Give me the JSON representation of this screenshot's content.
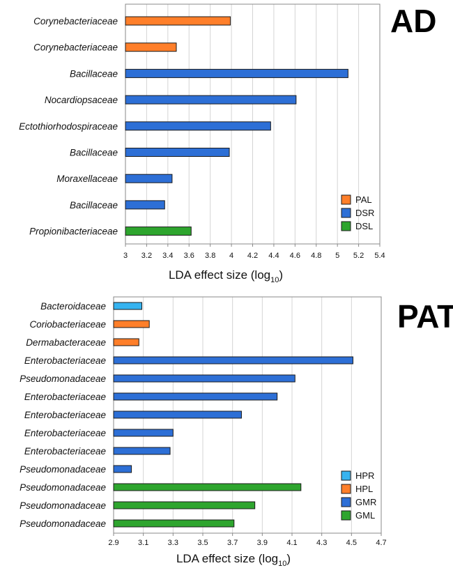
{
  "chart_data": [
    {
      "type": "bar",
      "orientation": "horizontal",
      "panel_label": "AD",
      "xlabel": "LDA effect size (log",
      "xlabel_sub": "10",
      "xlabel_close": ")",
      "xlim": [
        3,
        5.4
      ],
      "xticks": [
        "3",
        "3.2",
        "3.4",
        "3.6",
        "3.8",
        "4",
        "4.2",
        "4.4",
        "4.6",
        "4.8",
        "5",
        "5.2",
        "5.4"
      ],
      "grid": "vertical",
      "legend_position": "bottom-right",
      "legend": [
        {
          "name": "PAL",
          "color": "#ff7f2a"
        },
        {
          "name": "DSR",
          "color": "#2d6fd6"
        },
        {
          "name": "DSL",
          "color": "#2ea52e"
        }
      ],
      "categories": [
        "Corynebacteriaceae",
        "Corynebacteriaceae",
        "Bacillaceae",
        "Nocardiopsaceae",
        "Ectothiorhodospiraceae",
        "Bacillaceae",
        "Moraxellaceae",
        "Bacillaceae",
        "Propionibacteriaceae"
      ],
      "values": [
        3.99,
        3.48,
        5.1,
        4.61,
        4.37,
        3.98,
        3.44,
        3.37,
        3.62
      ],
      "groups": [
        "PAL",
        "PAL",
        "DSR",
        "DSR",
        "DSR",
        "DSR",
        "DSR",
        "DSR",
        "DSL"
      ]
    },
    {
      "type": "bar",
      "orientation": "horizontal",
      "panel_label": "PAT",
      "xlabel": "LDA effect size (log",
      "xlabel_sub": "10",
      "xlabel_close": ")",
      "xlim": [
        2.9,
        4.7
      ],
      "xticks": [
        "2.9",
        "3.1",
        "3.3",
        "3.5",
        "3.7",
        "3.9",
        "4.1",
        "4.3",
        "4.5",
        "4.7"
      ],
      "grid": "vertical",
      "legend_position": "bottom-right",
      "legend": [
        {
          "name": "HPR",
          "color": "#36b3f0"
        },
        {
          "name": "HPL",
          "color": "#ff7f2a"
        },
        {
          "name": "GMR",
          "color": "#2d6fd6"
        },
        {
          "name": "GML",
          "color": "#2ea52e"
        }
      ],
      "categories": [
        "Bacteroidaceae",
        "Coriobacteriaceae",
        "Dermabacteraceae",
        "Enterobacteriaceae",
        "Pseudomonadaceae",
        "Enterobacteriaceae",
        "Enterobacteriaceae",
        "Enterobacteriaceae",
        "Enterobacteriaceae",
        "Pseudomonadaceae",
        "Pseudomonadaceae",
        "Pseudomonadaceae",
        "Pseudomonadaceae"
      ],
      "values": [
        3.09,
        3.14,
        3.07,
        4.51,
        4.12,
        4.0,
        3.76,
        3.3,
        3.28,
        3.02,
        4.16,
        3.85,
        3.71
      ],
      "groups": [
        "HPR",
        "HPL",
        "HPL",
        "GMR",
        "GMR",
        "GMR",
        "GMR",
        "GMR",
        "GMR",
        "GMR",
        "GML",
        "GML",
        "GML"
      ]
    }
  ]
}
